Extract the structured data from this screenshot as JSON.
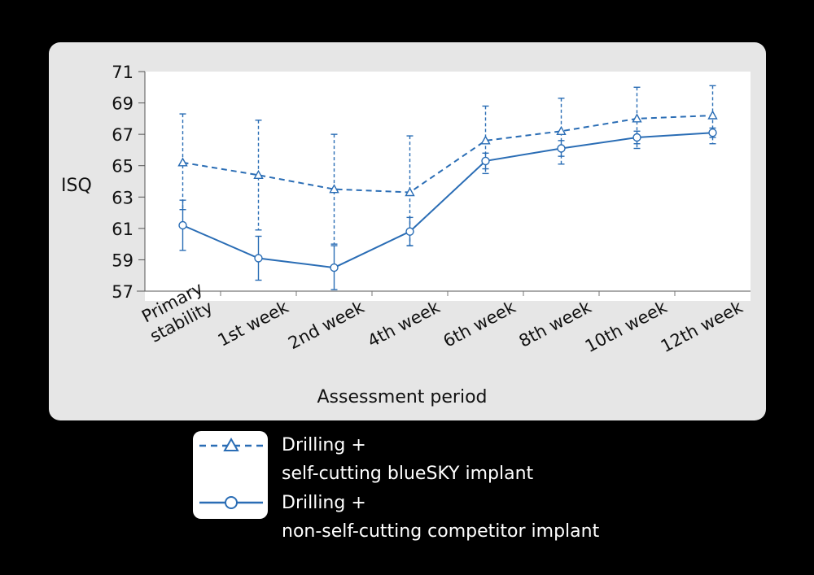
{
  "chart_data": {
    "type": "line",
    "ylabel": "ISQ",
    "xlabel": "Assessment period",
    "ylim": [
      57,
      71
    ],
    "yticks": [
      57,
      59,
      61,
      63,
      65,
      67,
      69,
      71
    ],
    "categories": [
      "Primary stability",
      "1st week",
      "2nd week",
      "4th week",
      "6th week",
      "8th week",
      "10th week",
      "12th week"
    ],
    "series": [
      {
        "name": "Drilling + self-cutting blueSKY implant",
        "legend_lines": [
          "Drilling +",
          "self-cutting blueSKY implant"
        ],
        "values": [
          65.2,
          64.4,
          63.5,
          63.3,
          66.6,
          67.2,
          68.0,
          68.2
        ],
        "err_high": [
          68.3,
          67.9,
          67.0,
          66.9,
          68.8,
          69.3,
          70.0,
          70.1
        ],
        "err_low": [
          62.2,
          60.9,
          60.0,
          59.9,
          64.5,
          65.1,
          66.1,
          66.4
        ],
        "marker": "triangle",
        "line": "dashed",
        "color": "#2a6db5"
      },
      {
        "name": "Drilling + non-self-cutting competitor implant",
        "legend_lines": [
          "Drilling +",
          "non-self-cutting competitor implant"
        ],
        "values": [
          61.2,
          59.1,
          58.5,
          60.8,
          65.3,
          66.1,
          66.8,
          67.1
        ],
        "err_high": [
          62.8,
          60.5,
          59.9,
          61.7,
          65.8,
          66.6,
          67.2,
          67.4
        ],
        "err_low": [
          59.6,
          57.7,
          57.1,
          59.9,
          64.8,
          65.6,
          66.4,
          66.8
        ],
        "marker": "circle",
        "line": "solid",
        "color": "#2a6db5"
      }
    ]
  }
}
